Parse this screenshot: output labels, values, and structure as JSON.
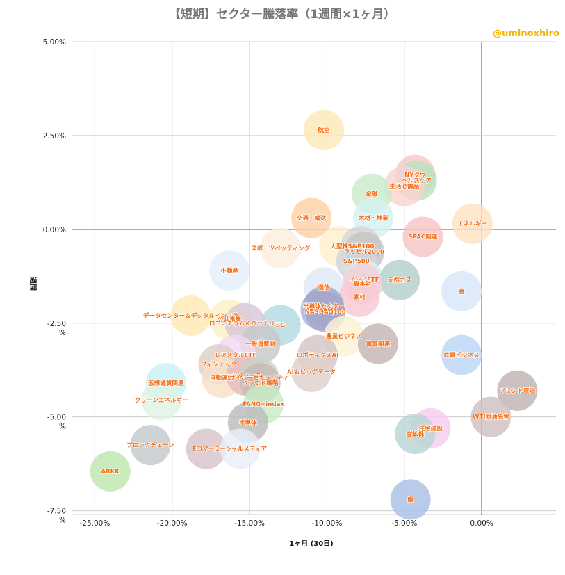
{
  "title": "【短期】セクター騰落率（1週間×1ヶ月）",
  "author": "@uminoxhiro",
  "chart_data": {
    "type": "scatter",
    "title": "【短期】セクター騰落率（1週間×1ヶ月）",
    "xlabel": "1ヶ月 (30日)",
    "ylabel": "週間",
    "xlim": [
      -26.5,
      4.8
    ],
    "ylim": [
      -7.6,
      5.0
    ],
    "x_ticks": [
      -25,
      -20,
      -15,
      -10,
      -5,
      0
    ],
    "x_tick_labels": [
      "-25.00%",
      "-20.00%",
      "-15.00%",
      "-10.00%",
      "-5.00%",
      "0.00%"
    ],
    "y_ticks": [
      5,
      2.5,
      0,
      -2.5,
      -5,
      -7.5
    ],
    "y_tick_labels": [
      "5.00%",
      "2.50%",
      "0.00%",
      "-2.50\n%",
      "-5.00\n%",
      "-7.50\n%"
    ],
    "grid": true,
    "legend": "none",
    "points": [
      {
        "label": "航空",
        "x": -10.2,
        "y": 2.65,
        "color": "#fde9b8"
      },
      {
        "label": "NYダウ",
        "x": -4.3,
        "y": 1.45,
        "color": "#f8c9c9"
      },
      {
        "label": "ヘルスケア",
        "x": -4.2,
        "y": 1.3,
        "color": "#b9e2bd"
      },
      {
        "label": "生活必需品",
        "x": -5.0,
        "y": 1.15,
        "color": "#fbd3d3"
      },
      {
        "label": "金融",
        "x": -7.1,
        "y": 0.95,
        "color": "#c9ebc9"
      },
      {
        "label": "木材・林業",
        "x": -7.0,
        "y": 0.3,
        "color": "#d4f1f1"
      },
      {
        "label": "交通・輸送",
        "x": -11.0,
        "y": 0.3,
        "color": "#fcd2a5"
      },
      {
        "label": "エネルギー",
        "x": -0.6,
        "y": 0.15,
        "color": "#fde2c2"
      },
      {
        "label": "SPAC関連",
        "x": -3.8,
        "y": -0.2,
        "color": "#f7c4c4"
      },
      {
        "label": "スポーツベッティング",
        "x": -13.0,
        "y": -0.5,
        "color": "#fdeede"
      },
      {
        "label": "大型株",
        "x": -9.2,
        "y": -0.45,
        "color": "#fff0cc"
      },
      {
        "label": "S&P100",
        "x": -7.8,
        "y": -0.45,
        "color": "#d5d5d5"
      },
      {
        "label": "ラッセル2000",
        "x": -7.6,
        "y": -0.6,
        "color": "#c4c4c4"
      },
      {
        "label": "S&P500",
        "x": -8.1,
        "y": -0.85,
        "color": "#cfd8dc"
      },
      {
        "label": "不動産",
        "x": -16.3,
        "y": -1.1,
        "color": "#e4eefb"
      },
      {
        "label": "インドETF",
        "x": -7.6,
        "y": -1.35,
        "color": "#d6f0ec"
      },
      {
        "label": "天然ガス",
        "x": -5.3,
        "y": -1.35,
        "color": "#b5cfca"
      },
      {
        "label": "資本財",
        "x": -7.7,
        "y": -1.45,
        "color": "#f6cdd8"
      },
      {
        "label": "通信",
        "x": -10.2,
        "y": -1.55,
        "color": "#dfe9f8"
      },
      {
        "label": "金",
        "x": -1.3,
        "y": -1.65,
        "color": "#d7e6fa"
      },
      {
        "label": "素材",
        "x": -7.9,
        "y": -1.8,
        "color": "#f8c9d1"
      },
      {
        "label": "NASDAQ",
        "x": -10.4,
        "y": -2.15,
        "color": "#aab2d6"
      },
      {
        "label": "半導体セクター",
        "x": -10.2,
        "y": -2.05,
        "color": "#9fa8cc"
      },
      {
        "label": "NASDAQ100",
        "x": -10.1,
        "y": -2.2,
        "color": "#a7a7c9"
      },
      {
        "label": "データセンター＆デジタルインフラ",
        "x": -18.8,
        "y": -2.3,
        "color": "#fde9b2"
      },
      {
        "label": "公共事業",
        "x": -16.3,
        "y": -2.4,
        "color": "#fdf0c3"
      },
      {
        "label": "SG",
        "x": -13.0,
        "y": -2.55,
        "color": "#b3d9e3"
      },
      {
        "label": "ロコミチウム＆バッテリー",
        "x": -15.3,
        "y": -2.5,
        "color": "#d9c7d9"
      },
      {
        "label": "農業ビジネス",
        "x": -8.9,
        "y": -2.85,
        "color": "#fdf2d4"
      },
      {
        "label": "一般消費財",
        "x": -14.3,
        "y": -3.05,
        "color": "#c8c8c8"
      },
      {
        "label": "軍事関連",
        "x": -6.7,
        "y": -3.05,
        "color": "#c7b5b5"
      },
      {
        "label": "レアメタルETF",
        "x": -15.9,
        "y": -3.35,
        "color": "#f2d9f2"
      },
      {
        "label": "ロボティクスAI",
        "x": -10.6,
        "y": -3.35,
        "color": "#d3c4c4"
      },
      {
        "label": "鉄鋼ビジネス",
        "x": -1.3,
        "y": -3.35,
        "color": "#bcd6f6"
      },
      {
        "label": "フィンテック",
        "x": -17.0,
        "y": -3.6,
        "color": "#dcd0c4"
      },
      {
        "label": "AI＆ビッグデータ",
        "x": -11.0,
        "y": -3.8,
        "color": "#e1d1c9"
      },
      {
        "label": "自動運転",
        "x": -16.8,
        "y": -3.95,
        "color": "#f7e0c9"
      },
      {
        "label": "メタバース",
        "x": -15.2,
        "y": -3.9,
        "color": "#e6b9b9"
      },
      {
        "label": "サイバーセキュリティ",
        "x": -14.4,
        "y": -3.95,
        "color": "#c9d3c9"
      },
      {
        "label": "クラウド戦略",
        "x": -14.3,
        "y": -4.1,
        "color": "#c8b9b9"
      },
      {
        "label": "仮想通貨関連",
        "x": -20.4,
        "y": -4.1,
        "color": "#c9f2f4"
      },
      {
        "label": "ブレント原油",
        "x": 2.3,
        "y": -4.3,
        "color": "#bfb3b3"
      },
      {
        "label": "クリーンエネルギー",
        "x": -20.7,
        "y": -4.55,
        "color": "#dff3e3"
      },
      {
        "label": "FANG+index",
        "x": -14.1,
        "y": -4.65,
        "color": "#c8ebc3"
      },
      {
        "label": "WTI原油先物",
        "x": 0.6,
        "y": -5.0,
        "color": "#cfc0c0"
      },
      {
        "label": "半導体",
        "x": -15.1,
        "y": -5.15,
        "color": "#bcbcbc"
      },
      {
        "label": "住宅建設",
        "x": -3.3,
        "y": -5.3,
        "color": "#f7ccf0"
      },
      {
        "label": "金鉱株",
        "x": -4.3,
        "y": -5.45,
        "color": "#b9d5d5"
      },
      {
        "label": "ブロックチェーン",
        "x": -21.4,
        "y": -5.75,
        "color": "#c4c9cc"
      },
      {
        "label": "Eコマース",
        "x": -17.8,
        "y": -5.85,
        "color": "#d8c5cc"
      },
      {
        "label": "ソーシャルメディア",
        "x": -15.6,
        "y": -5.85,
        "color": "#e8eef9"
      },
      {
        "label": "ARKK",
        "x": -24.0,
        "y": -6.45,
        "color": "#bde6b0"
      },
      {
        "label": "銀",
        "x": -4.6,
        "y": -7.2,
        "color": "#a9bfe5"
      }
    ]
  }
}
